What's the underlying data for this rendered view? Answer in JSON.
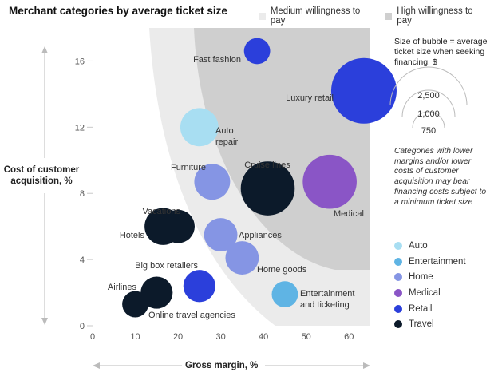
{
  "title": "Merchant categories by average ticket size",
  "legend_top": [
    {
      "label": "Medium willingness to pay",
      "color": "#ebebeb"
    },
    {
      "label": "High willingness to pay",
      "color": "#cfcfcf"
    }
  ],
  "size_legend": {
    "title": "Size of bubble = average ticket size when seeking financing, $",
    "values": [
      "2,500",
      "1,000",
      "750"
    ]
  },
  "note": "Categories with lower margins and/or lower costs of customer acquisition may bear financing costs subject to a minimum ticket size",
  "categories": [
    {
      "label": "Auto",
      "color": "#a8def2"
    },
    {
      "label": "Entertainment",
      "color": "#5fb4e4"
    },
    {
      "label": "Home",
      "color": "#8595e4"
    },
    {
      "label": "Medical",
      "color": "#8a55c6"
    },
    {
      "label": "Retail",
      "color": "#2b3fdb"
    },
    {
      "label": "Travel",
      "color": "#0c1a2a"
    }
  ],
  "chart_data": {
    "type": "scatter",
    "subtype": "bubble",
    "xlabel": "Gross margin, %",
    "ylabel": "Cost of customer acquisition, %",
    "xlim": [
      0,
      65
    ],
    "ylim": [
      0,
      18
    ],
    "xticks": [
      0,
      10,
      20,
      30,
      40,
      50,
      60
    ],
    "yticks": [
      0,
      4,
      8,
      12,
      16
    ],
    "points": [
      {
        "name": "Fast fashion",
        "category": "Retail",
        "x": 38.5,
        "y": 16.6,
        "ticket": 400
      },
      {
        "name": "Luxury retail",
        "category": "Retail",
        "x": 63.5,
        "y": 14.2,
        "ticket": 2500
      },
      {
        "name": "Auto repair",
        "category": "Auto",
        "x": 25,
        "y": 12,
        "ticket": 850
      },
      {
        "name": "Furniture",
        "category": "Home",
        "x": 28,
        "y": 8.7,
        "ticket": 750
      },
      {
        "name": "Cruise lines",
        "category": "Travel",
        "x": 41,
        "y": 8.3,
        "ticket": 1700
      },
      {
        "name": "Medical",
        "category": "Medical",
        "x": 55.5,
        "y": 8.7,
        "ticket": 1700
      },
      {
        "name": "Vacations",
        "category": "Travel",
        "x": 20,
        "y": 6,
        "ticket": 650
      },
      {
        "name": "Hotels",
        "category": "Travel",
        "x": 16.5,
        "y": 6,
        "ticket": 800
      },
      {
        "name": "Appliances",
        "category": "Home",
        "x": 30,
        "y": 5.5,
        "ticket": 650
      },
      {
        "name": "Home goods",
        "category": "Home",
        "x": 35,
        "y": 4.1,
        "ticket": 650
      },
      {
        "name": "Big box retailers",
        "category": "Retail",
        "x": 25,
        "y": 2.4,
        "ticket": 600
      },
      {
        "name": "Airlines",
        "category": "Travel",
        "x": 15,
        "y": 2,
        "ticket": 600
      },
      {
        "name": "Online travel agencies",
        "category": "Travel",
        "x": 10,
        "y": 1.3,
        "ticket": 400
      },
      {
        "name": "Entertainment and ticketing",
        "category": "Entertainment",
        "x": 45,
        "y": 1.9,
        "ticket": 400
      }
    ]
  }
}
